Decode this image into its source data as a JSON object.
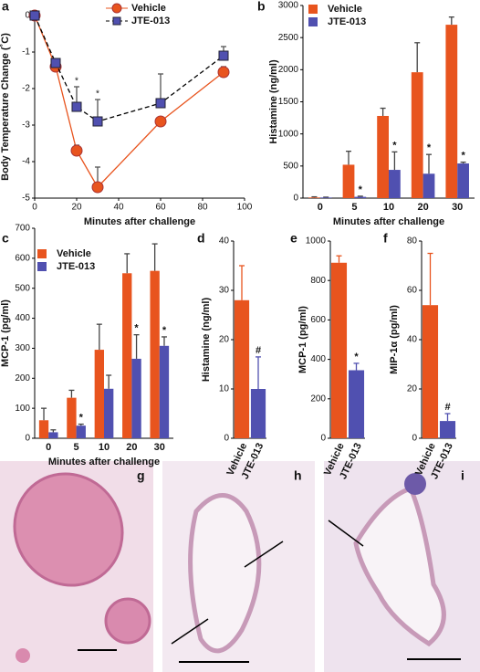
{
  "chart_data": [
    {
      "type": "line",
      "panel": "a",
      "ylabel": "Body Temperature Change (˚C)",
      "xlabel": "Minutes after challenge",
      "x": [
        0,
        10,
        20,
        30,
        60,
        90
      ],
      "xlim": [
        0,
        100
      ],
      "xticks": [
        0,
        20,
        40,
        60,
        80,
        100
      ],
      "ylim": [
        -5,
        0
      ],
      "yticks": [
        0,
        -1,
        -2,
        -3,
        -4,
        -5
      ],
      "legend": "top",
      "series": [
        {
          "name": "Vehicle",
          "color": "#e8541e",
          "values": [
            0,
            -1.4,
            -3.7,
            -4.7,
            -2.9,
            -1.55
          ],
          "errors": [
            0,
            0.1,
            0.15,
            0.55,
            0.1,
            0.15
          ],
          "sig": [
            null,
            null,
            null,
            null,
            null,
            null
          ]
        },
        {
          "name": "JTE-013",
          "color": "#5050b0",
          "values": [
            0,
            -1.3,
            -2.5,
            -2.9,
            -2.4,
            -1.1
          ],
          "errors": [
            0,
            0.1,
            0.55,
            0.6,
            0.8,
            0.25
          ],
          "sig": [
            null,
            null,
            "*",
            "*",
            null,
            null
          ]
        }
      ]
    },
    {
      "type": "groupbar",
      "panel": "b",
      "ylabel": "Histamine (ng/ml)",
      "xlabel": "Minutes after challenge",
      "categories": [
        "0",
        "5",
        "10",
        "20",
        "30"
      ],
      "ylim": [
        0,
        3000
      ],
      "yticks": [
        0,
        500,
        1000,
        1500,
        2000,
        2500,
        3000
      ],
      "legend": "top-left",
      "series": [
        {
          "name": "Vehicle",
          "color": "#e8541e",
          "values": [
            10,
            520,
            1280,
            1960,
            2700
          ],
          "errors": [
            10,
            210,
            120,
            460,
            120
          ],
          "sig": [
            null,
            null,
            null,
            null,
            null
          ]
        },
        {
          "name": "JTE-013",
          "color": "#5050b0",
          "values": [
            10,
            20,
            440,
            380,
            540
          ],
          "errors": [
            5,
            10,
            280,
            300,
            20
          ],
          "sig": [
            null,
            "*",
            "*",
            "*",
            "*"
          ]
        }
      ]
    },
    {
      "type": "groupbar",
      "panel": "c",
      "ylabel": "MCP-1 (pg/ml)",
      "xlabel": "Minutes after challenge",
      "categories": [
        "0",
        "5",
        "10",
        "20",
        "30"
      ],
      "ylim": [
        0,
        700
      ],
      "yticks": [
        0,
        100,
        200,
        300,
        400,
        500,
        600,
        700
      ],
      "legend": "top-left",
      "series": [
        {
          "name": "Vehicle",
          "color": "#e8541e",
          "values": [
            60,
            135,
            295,
            550,
            558
          ],
          "errors": [
            40,
            25,
            85,
            65,
            90
          ],
          "sig": [
            null,
            null,
            null,
            null,
            null
          ]
        },
        {
          "name": "JTE-013",
          "color": "#5050b0",
          "values": [
            20,
            42,
            165,
            265,
            308
          ],
          "errors": [
            8,
            5,
            45,
            80,
            30
          ],
          "sig": [
            null,
            "*",
            null,
            "*",
            "*"
          ]
        }
      ]
    },
    {
      "type": "bar",
      "panel": "d",
      "ylabel": "Histamine  (ng/ml)",
      "categories": [
        "Vehicle",
        "JTE-013"
      ],
      "values": [
        28,
        10
      ],
      "errors": [
        7,
        6.5
      ],
      "colors": [
        "#e8541e",
        "#5050b0"
      ],
      "sig": [
        null,
        "#"
      ],
      "ylim": [
        0,
        40
      ],
      "yticks": [
        0,
        10,
        20,
        30,
        40
      ]
    },
    {
      "type": "bar",
      "panel": "e",
      "ylabel": "MCP-1 (pg/ml)",
      "categories": [
        "Vehicle",
        "JTE-013"
      ],
      "values": [
        890,
        345
      ],
      "errors": [
        35,
        35
      ],
      "colors": [
        "#e8541e",
        "#5050b0"
      ],
      "sig": [
        null,
        "*"
      ],
      "ylim": [
        0,
        1000
      ],
      "yticks": [
        0,
        200,
        400,
        600,
        800,
        1000
      ]
    },
    {
      "type": "bar",
      "panel": "f",
      "ylabel": "MIP-1α (pg/ml)",
      "categories": [
        "Vehicle",
        "JTE-013"
      ],
      "values": [
        54,
        7
      ],
      "errors": [
        21,
        3
      ],
      "colors": [
        "#e8541e",
        "#5050b0"
      ],
      "sig": [
        null,
        "#"
      ],
      "ylim": [
        0,
        80
      ],
      "yticks": [
        0,
        20,
        40,
        60,
        80
      ]
    }
  ],
  "images": [
    {
      "panel": "g"
    },
    {
      "panel": "h"
    },
    {
      "panel": "i"
    }
  ]
}
